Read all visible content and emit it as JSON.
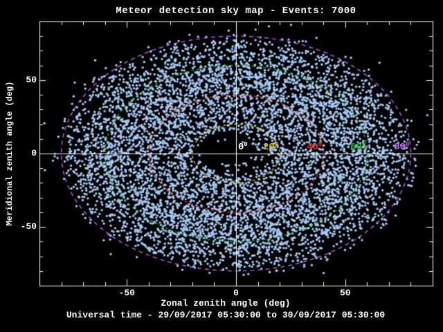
{
  "title": "Meteor detection sky map - Events: 7000",
  "chart_data": {
    "type": "scatter",
    "title": "Meteor detection sky map - Events: 7000",
    "xlabel": "Zonal zenith angle (deg)",
    "ylabel": "Meridional zenith angle (deg)",
    "footer": "Universal time - 29/09/2017 05:30:00 to 30/09/2017 05:30:00",
    "events_total": 7000,
    "xlim": [
      -90,
      90
    ],
    "ylim": [
      -90,
      90
    ],
    "minor_tick_step": 10,
    "grid": false,
    "background": "#000000",
    "axis_color": "#ffffff",
    "point_color": "#a9cbf5",
    "x_ticks": [
      {
        "value": -50,
        "label": "-50"
      },
      {
        "value": 0,
        "label": "0"
      },
      {
        "value": 50,
        "label": "50"
      }
    ],
    "y_ticks": [
      {
        "value": -50,
        "label": "-50"
      },
      {
        "value": 0,
        "label": "0"
      },
      {
        "value": 50,
        "label": "50"
      }
    ],
    "contours": [
      {
        "value": 0,
        "base": "0",
        "sup": "0",
        "color": "#ffffff"
      },
      {
        "value": 20,
        "base": "20",
        "sup": "0",
        "color": "#d2c22a"
      },
      {
        "value": 40,
        "base": "40",
        "sup": "0",
        "color": "#e03222"
      },
      {
        "value": 60,
        "base": "60",
        "sup": "0",
        "color": "#24b030"
      },
      {
        "value": 80,
        "base": "80",
        "sup": "0",
        "color": "#c462ee"
      }
    ],
    "scatter": {
      "n_points": 7000,
      "max_zenith_deg": 92,
      "seed": 20170929,
      "central_hole": {
        "x_deg": -7,
        "y_deg": 3,
        "radius_deg": 10
      }
    }
  }
}
